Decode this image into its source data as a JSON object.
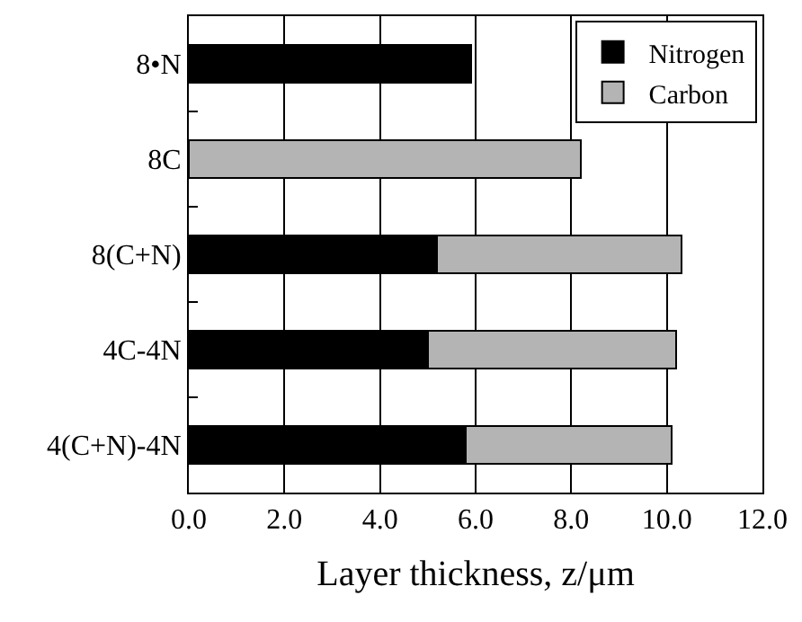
{
  "chart_data": {
    "type": "bar",
    "orientation": "horizontal",
    "stacked": true,
    "categories": [
      "8•N",
      "8C",
      "8(C+N)",
      "4C-4N",
      "4(C+N)-4N"
    ],
    "series": [
      {
        "name": "Nitrogen",
        "color": "#000000",
        "values": [
          5.9,
          null,
          5.2,
          5.0,
          5.8
        ]
      },
      {
        "name": "Carbon",
        "color": "#b4b4b4",
        "values": [
          null,
          8.2,
          5.1,
          5.2,
          4.3
        ]
      }
    ],
    "xlabel": "Layer thickness, z/μm",
    "xlim": [
      0,
      12
    ],
    "xticks": [
      {
        "value": 0,
        "label": "0.0"
      },
      {
        "value": 2,
        "label": "2.0"
      },
      {
        "value": 4,
        "label": "4.0"
      },
      {
        "value": 6,
        "label": "6.0"
      },
      {
        "value": 8,
        "label": "8.0"
      },
      {
        "value": 10,
        "label": "10.0"
      },
      {
        "value": 12,
        "label": "12.0"
      }
    ],
    "grid": "x",
    "legend": "top right"
  }
}
